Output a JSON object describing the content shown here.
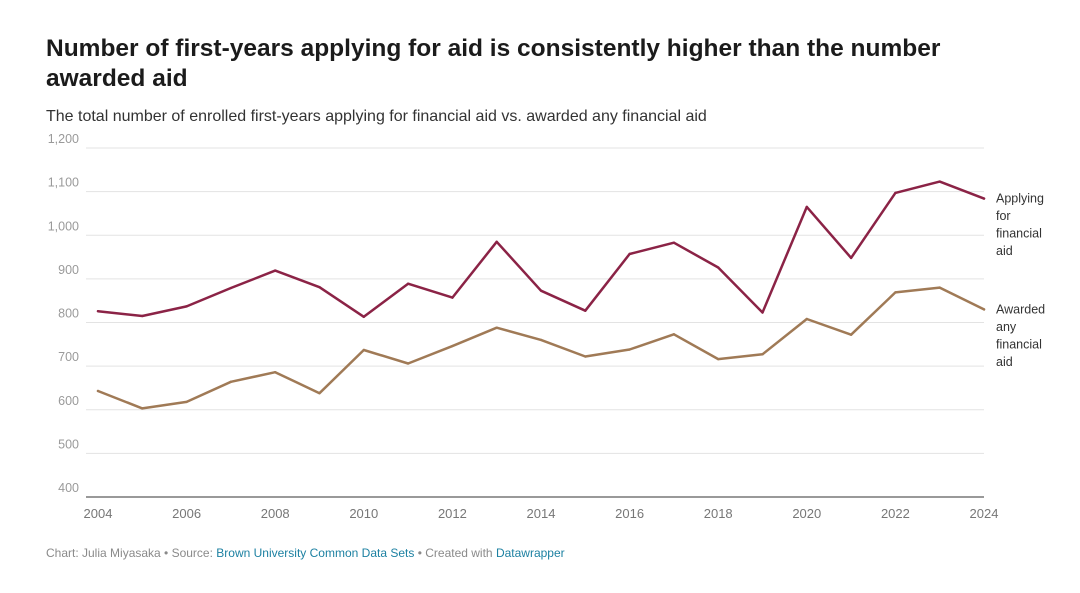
{
  "header": {
    "title": "Number of first-years applying for aid is consistently higher than the number awarded aid",
    "subtitle": "The total number of enrolled first-years applying for financial aid vs. awarded any financial aid"
  },
  "footer": {
    "prefix": "Chart: Julia Miyasaka • Source: ",
    "source": "Brown University Common Data Sets",
    "middle": " • Created with ",
    "tool": "Datawrapper"
  },
  "chart_data": {
    "type": "line",
    "title": "Number of first-years applying for aid is consistently higher than the number awarded aid",
    "subtitle": "The total number of enrolled first-years applying for financial aid vs. awarded any financial aid",
    "x": [
      2004,
      2005,
      2006,
      2007,
      2008,
      2009,
      2010,
      2011,
      2012,
      2013,
      2014,
      2015,
      2016,
      2017,
      2018,
      2019,
      2020,
      2021,
      2022,
      2023,
      2024
    ],
    "x_ticks": [
      "2004",
      "2006",
      "2008",
      "2010",
      "2012",
      "2014",
      "2016",
      "2018",
      "2020",
      "2022",
      "2024"
    ],
    "y_ticks": [
      "400",
      "500",
      "600",
      "700",
      "800",
      "900",
      "1,000",
      "1,100",
      "1,200"
    ],
    "ylim": [
      400,
      1200
    ],
    "xlim": [
      2004,
      2024
    ],
    "grid": true,
    "series": [
      {
        "name": "Applying for financial aid",
        "label_lines": [
          "Applying",
          "for",
          "financial",
          "aid"
        ],
        "color": "#8b2346",
        "values": [
          826,
          815,
          837,
          879,
          919,
          881,
          813,
          889,
          857,
          985,
          873,
          827,
          957,
          983,
          926,
          823,
          1065,
          948,
          1097,
          1123,
          1084
        ]
      },
      {
        "name": "Awarded any financial aid",
        "label_lines": [
          "Awarded",
          "any",
          "financial",
          "aid"
        ],
        "color": "#a07a56",
        "values": [
          643,
          603,
          618,
          664,
          686,
          638,
          737,
          706,
          746,
          788,
          760,
          722,
          738,
          773,
          716,
          727,
          808,
          772,
          869,
          880,
          830
        ]
      }
    ]
  }
}
